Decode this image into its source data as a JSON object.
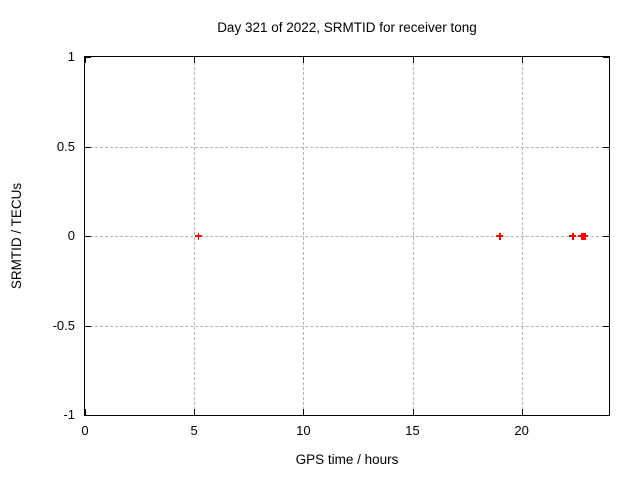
{
  "chart_data": {
    "type": "scatter",
    "title": "Day 321 of 2022, SRMTID for receiver tong",
    "xlabel": "GPS time / hours",
    "ylabel": "SRMTID / TECUs",
    "xlim": [
      0,
      24
    ],
    "ylim": [
      -1,
      1
    ],
    "grid": true,
    "legend": "none",
    "xticks": [
      {
        "v": 0,
        "label": "0"
      },
      {
        "v": 5,
        "label": "5"
      },
      {
        "v": 10,
        "label": "10"
      },
      {
        "v": 15,
        "label": "15"
      },
      {
        "v": 20,
        "label": "20"
      }
    ],
    "yticks": [
      {
        "v": -1,
        "label": "-1"
      },
      {
        "v": -0.5,
        "label": "-0.5"
      },
      {
        "v": 0,
        "label": "0"
      },
      {
        "v": 0.5,
        "label": "0.5"
      },
      {
        "v": 1,
        "label": "1"
      }
    ],
    "series": [
      {
        "name": "SRMTID",
        "marker": "plus",
        "color": "#ff0000",
        "points": [
          [
            5.2,
            0
          ],
          [
            19.0,
            0
          ],
          [
            22.35,
            0
          ],
          [
            22.75,
            0
          ],
          [
            22.82,
            0
          ],
          [
            22.9,
            0
          ]
        ]
      }
    ]
  },
  "colors": {
    "background": "#ffffff",
    "axis": "#000000",
    "grid": "#b5b5b5",
    "marker": "#ff0000"
  }
}
